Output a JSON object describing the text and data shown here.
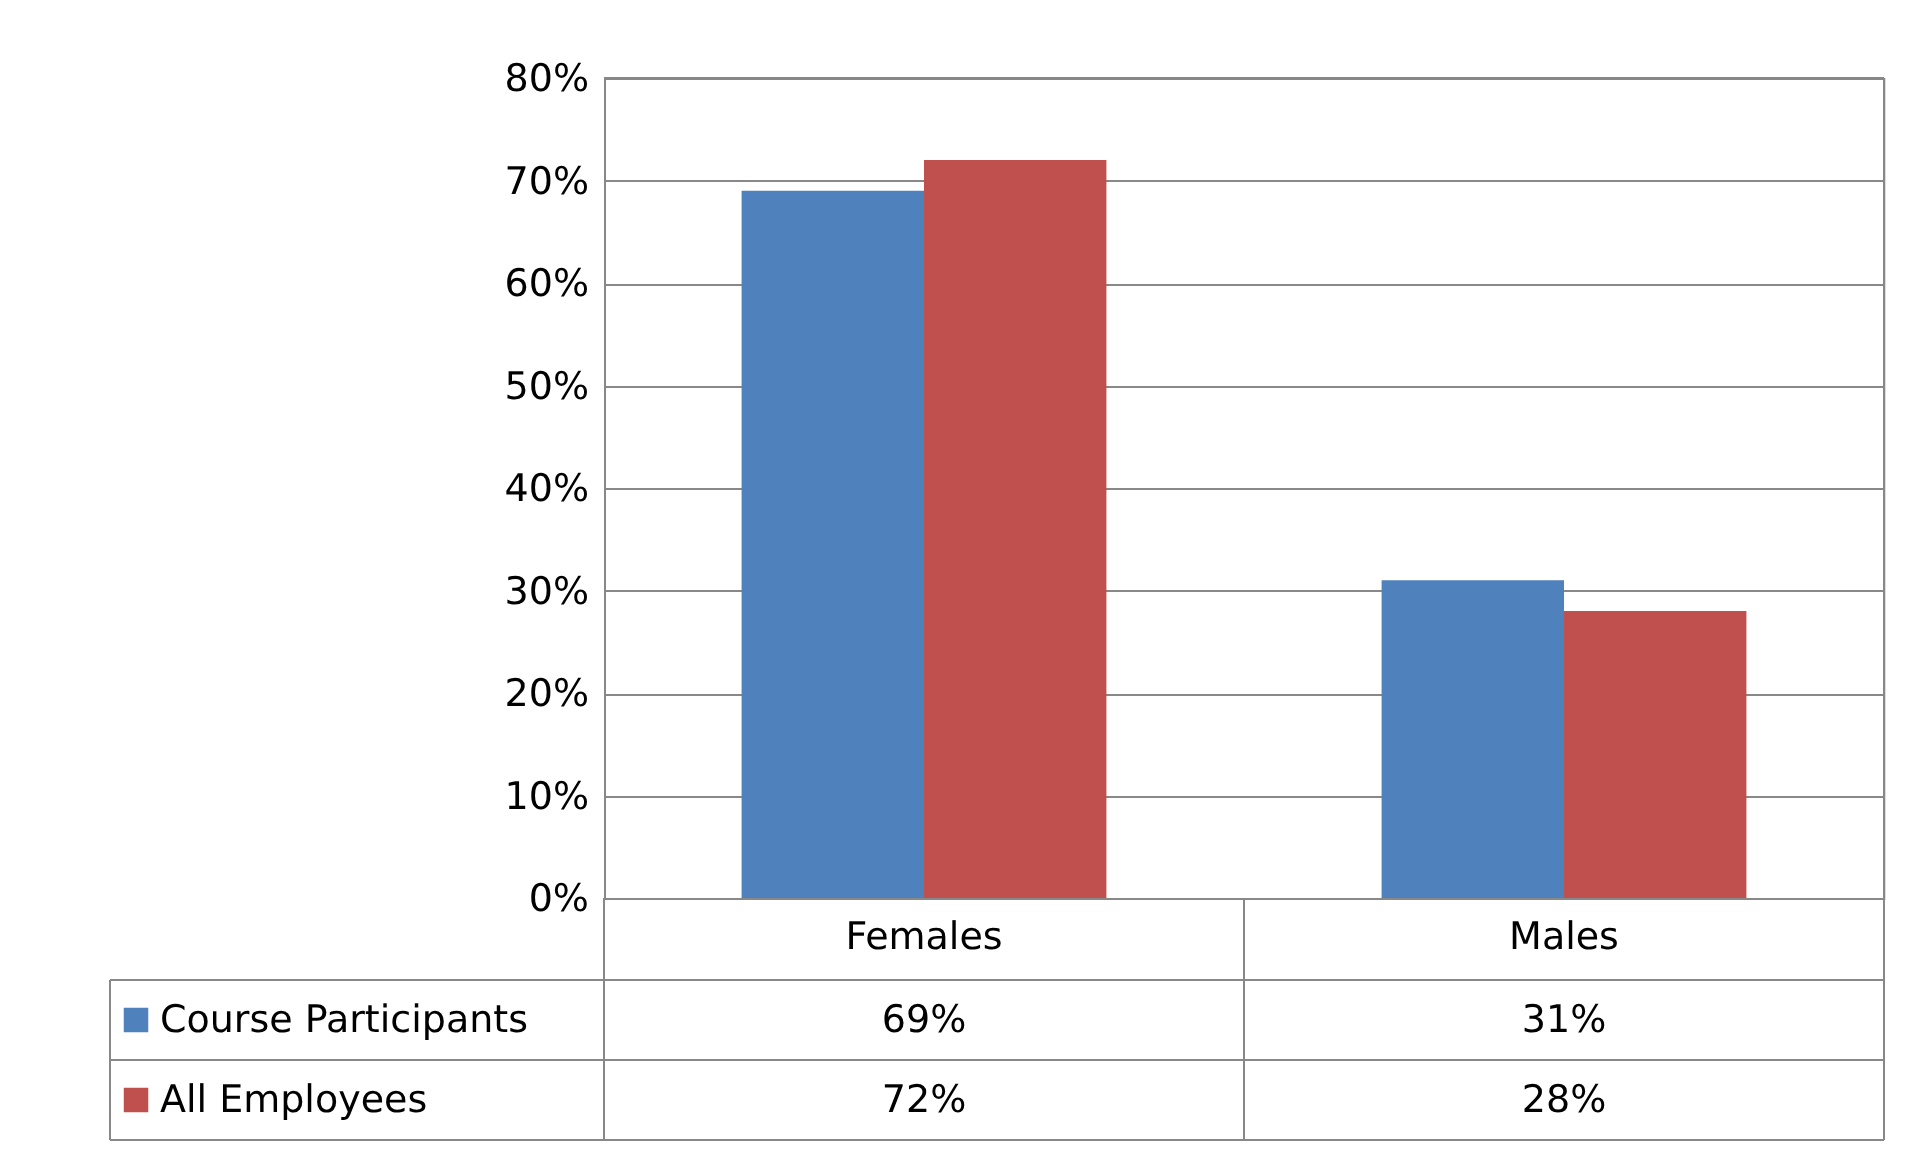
{
  "chart_data": {
    "type": "bar",
    "categories": [
      "Females",
      "Males"
    ],
    "series": [
      {
        "name": "Course Participants",
        "color": "#4f81bd",
        "values": [
          69,
          31
        ],
        "value_labels": [
          "69%",
          "31%"
        ]
      },
      {
        "name": "All Employees",
        "color": "#c0504d",
        "values": [
          72,
          28
        ],
        "value_labels": [
          "72%",
          "28%"
        ]
      }
    ],
    "ylim": [
      0,
      80
    ],
    "yticks": [
      {
        "value": 0,
        "label": "0%"
      },
      {
        "value": 10,
        "label": "10%"
      },
      {
        "value": 20,
        "label": "20%"
      },
      {
        "value": 30,
        "label": "30%"
      },
      {
        "value": 40,
        "label": "40%"
      },
      {
        "value": 50,
        "label": "50%"
      },
      {
        "value": 60,
        "label": "60%"
      },
      {
        "value": 70,
        "label": "70%"
      },
      {
        "value": 80,
        "label": "80%"
      }
    ],
    "grid": "y",
    "legend": "bottom"
  }
}
